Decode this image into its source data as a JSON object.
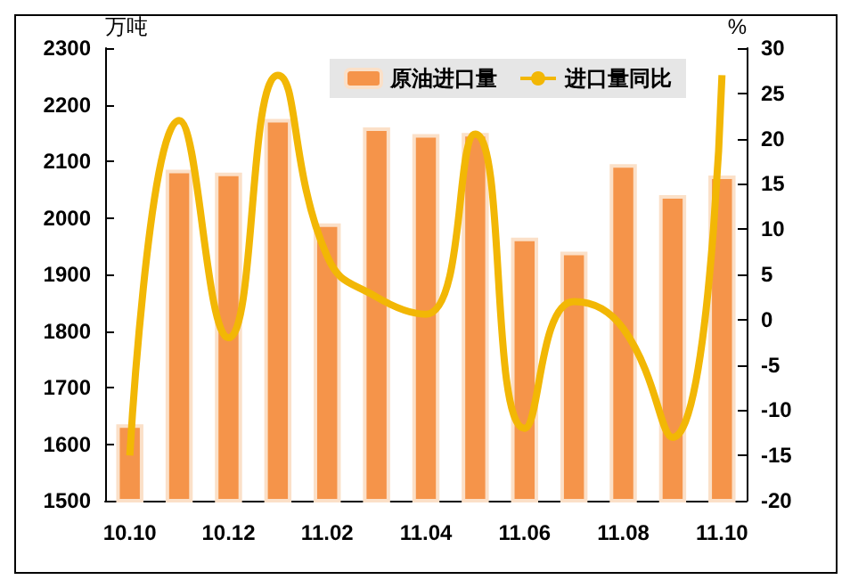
{
  "chart_data": {
    "type": "bar",
    "categories": [
      "10.10",
      null,
      "10.12",
      null,
      "11.02",
      null,
      "11.04",
      null,
      "11.06",
      null,
      "11.08",
      null,
      "11.10"
    ],
    "ylabel": "万吨",
    "y2label": "%",
    "series": [
      {
        "name": "原油进口量",
        "color": "#f5944a",
        "values": [
          1635,
          2085,
          2080,
          2175,
          1990,
          2160,
          2148,
          2150,
          1965,
          1940,
          2095,
          2040,
          2075
        ]
      },
      {
        "name": "进口量同比",
        "type": "line",
        "axis": "y2",
        "color": "#f2b705",
        "values": [
          -15,
          22,
          -2,
          27,
          7,
          2.5,
          0.6,
          20.5,
          -12,
          2,
          -1,
          -13,
          27
        ]
      }
    ],
    "ylim": [
      1500,
      2300
    ],
    "yticks": [
      1500,
      1600,
      1700,
      1800,
      1900,
      2000,
      2100,
      2200,
      2300
    ],
    "y2lim": [
      -20,
      30
    ],
    "y2ticks": [
      -20,
      -15,
      -10,
      -5,
      0,
      5,
      10,
      15,
      20,
      25,
      30
    ],
    "legend": "top right",
    "grid": false,
    "marker": "none"
  }
}
